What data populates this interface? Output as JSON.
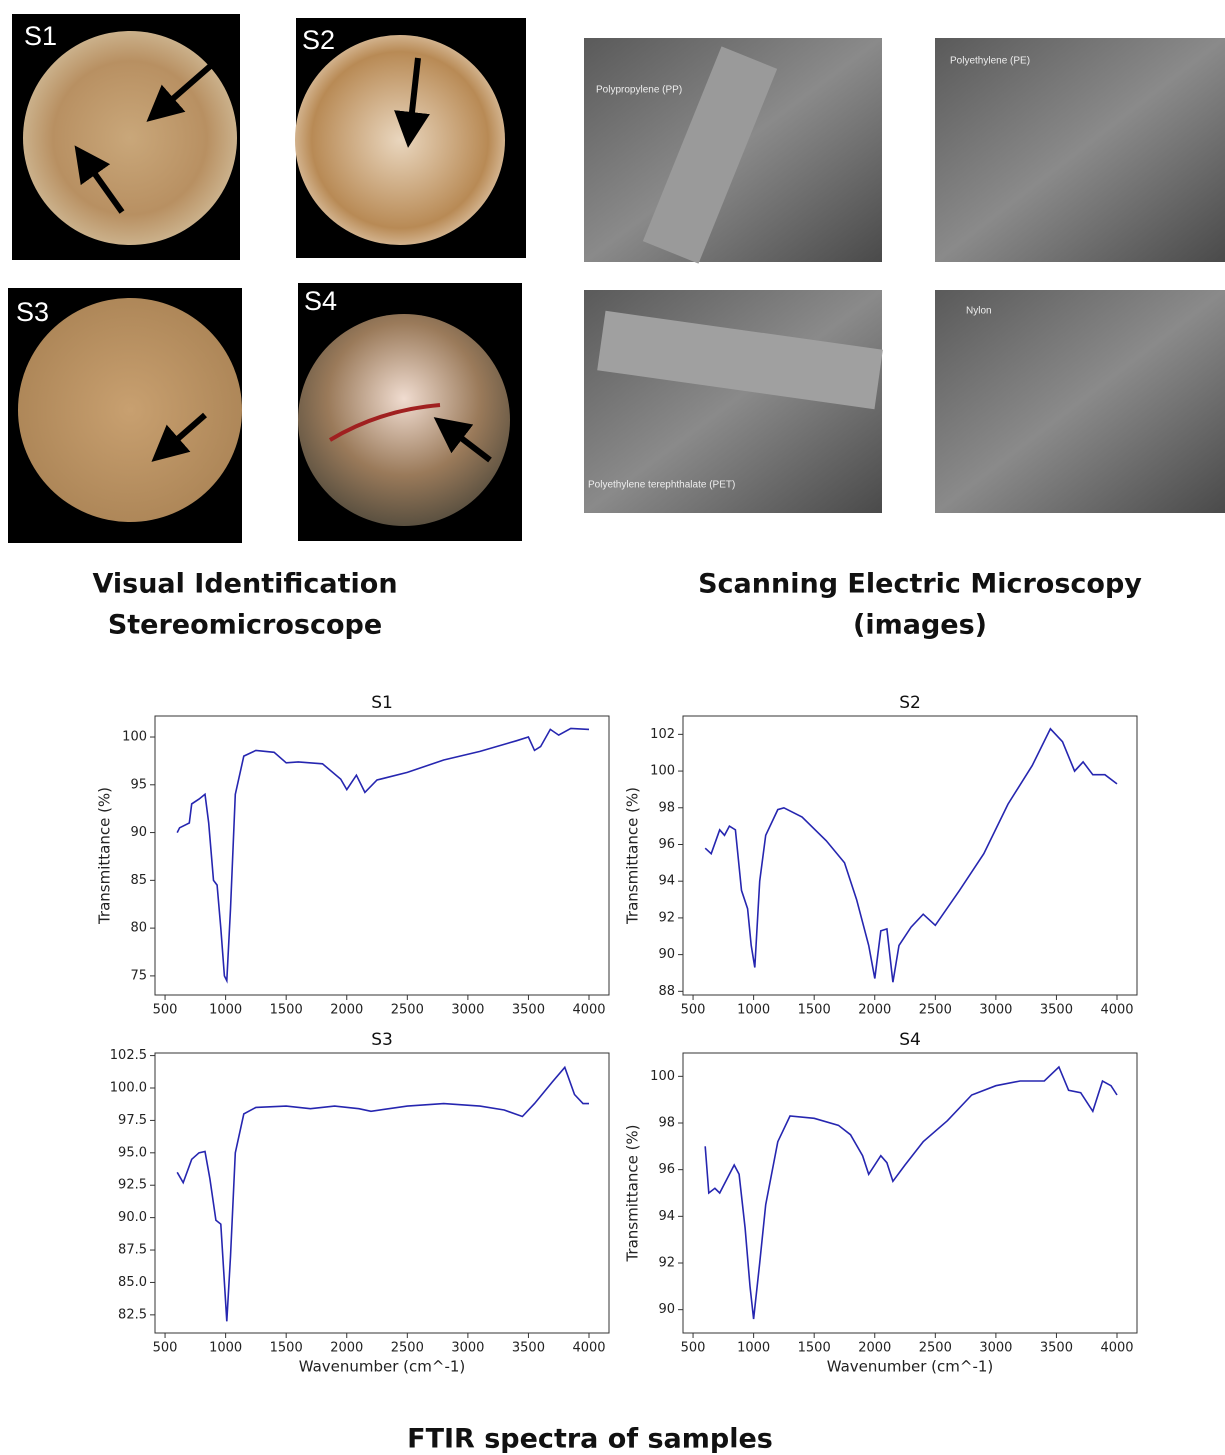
{
  "photos": {
    "labels": [
      "S1",
      "S2",
      "S3",
      "S4"
    ],
    "caption": [
      "Visual Identification",
      "Stereomicroscope"
    ]
  },
  "sem": {
    "labels": [
      "Polypropylene (PP)",
      "Polyethylene (PE)",
      "Polyethylene terephthalate (PET)",
      "Nylon"
    ],
    "caption": [
      "Scanning Electric Microscopy",
      "(images)"
    ]
  },
  "chart_data": [
    {
      "type": "line",
      "title": "S1",
      "ylabel": "Transmittance (%)",
      "color": "#2626b0",
      "x": [
        600,
        620,
        700,
        720,
        780,
        830,
        860,
        900,
        930,
        960,
        990,
        1010,
        1040,
        1080,
        1150,
        1250,
        1400,
        1500,
        1600,
        1800,
        1950,
        2000,
        2080,
        2150,
        2250,
        2500,
        2800,
        3100,
        3400,
        3500,
        3550,
        3600,
        3680,
        3750,
        3850,
        4000
      ],
      "values": [
        90,
        90.5,
        91,
        93,
        93.5,
        94,
        91,
        85,
        84.5,
        80,
        75,
        74.5,
        82,
        94,
        98,
        98.6,
        98.4,
        97.3,
        97.4,
        97.2,
        95.6,
        94.5,
        96,
        94.2,
        95.5,
        96.3,
        97.6,
        98.5,
        99.6,
        100,
        98.6,
        99,
        100.8,
        100.2,
        100.9,
        100.8
      ],
      "xlim": [
        417,
        4165
      ],
      "ylim": [
        73,
        102.2
      ],
      "xticks": [
        500,
        1000,
        1500,
        2000,
        2500,
        3000,
        3500,
        4000
      ],
      "yticks": [
        75,
        80,
        85,
        90,
        95,
        100
      ]
    },
    {
      "type": "line",
      "title": "S2",
      "ylabel": "Transmittance (%)",
      "color": "#2626b0",
      "x": [
        600,
        650,
        720,
        760,
        800,
        850,
        900,
        950,
        980,
        1010,
        1050,
        1100,
        1200,
        1250,
        1400,
        1600,
        1750,
        1850,
        1950,
        2000,
        2050,
        2100,
        2150,
        2200,
        2300,
        2400,
        2500,
        2700,
        2900,
        3100,
        3300,
        3450,
        3550,
        3650,
        3720,
        3800,
        3900,
        4000
      ],
      "values": [
        95.8,
        95.5,
        96.8,
        96.5,
        97,
        96.8,
        93.5,
        92.5,
        90.5,
        89.3,
        94,
        96.5,
        97.9,
        98,
        97.5,
        96.2,
        95,
        93,
        90.5,
        88.7,
        91.3,
        91.4,
        88.5,
        90.5,
        91.5,
        92.2,
        91.6,
        93.5,
        95.5,
        98.2,
        100.3,
        102.3,
        101.6,
        100,
        100.5,
        99.8,
        99.8,
        99.3
      ],
      "xlim": [
        417,
        4165
      ],
      "ylim": [
        87.8,
        103
      ],
      "xticks": [
        500,
        1000,
        1500,
        2000,
        2500,
        3000,
        3500,
        4000
      ],
      "yticks": [
        88,
        90,
        92,
        94,
        96,
        98,
        100,
        102
      ]
    },
    {
      "type": "line",
      "title": "S3",
      "xlabel": "Wavenumber (cm^-1)",
      "color": "#2626b0",
      "x": [
        600,
        650,
        720,
        780,
        830,
        870,
        920,
        960,
        990,
        1010,
        1040,
        1080,
        1150,
        1250,
        1500,
        1700,
        1900,
        2100,
        2200,
        2500,
        2800,
        3100,
        3300,
        3450,
        3550,
        3700,
        3800,
        3880,
        3950,
        4000
      ],
      "values": [
        93.5,
        92.7,
        94.5,
        95,
        95.1,
        93,
        89.8,
        89.5,
        85,
        82,
        87,
        95,
        98,
        98.5,
        98.6,
        98.4,
        98.6,
        98.4,
        98.2,
        98.6,
        98.8,
        98.6,
        98.3,
        97.8,
        98.8,
        100.5,
        101.6,
        99.5,
        98.8,
        98.8
      ],
      "xlim": [
        417,
        4165
      ],
      "ylim": [
        81.1,
        102.7
      ],
      "xticks": [
        500,
        1000,
        1500,
        2000,
        2500,
        3000,
        3500,
        4000
      ],
      "yticks": [
        82.5,
        {
          "value": 85,
          "label": "85.0"
        },
        87.5,
        {
          "value": 90,
          "label": "90.0"
        },
        92.5,
        {
          "value": 95,
          "label": "95.0"
        },
        97.5,
        {
          "value": 100,
          "label": "100.0"
        },
        102.5
      ]
    },
    {
      "type": "line",
      "title": "S4",
      "xlabel": "Wavenumber (cm^-1)",
      "ylabel": "Transmittance (%)",
      "color": "#2626b0",
      "x": [
        600,
        630,
        680,
        720,
        800,
        840,
        880,
        930,
        970,
        1000,
        1050,
        1100,
        1200,
        1300,
        1500,
        1700,
        1800,
        1900,
        1950,
        2050,
        2100,
        2150,
        2250,
        2400,
        2600,
        2800,
        3000,
        3200,
        3400,
        3520,
        3600,
        3700,
        3800,
        3880,
        3950,
        4000
      ],
      "values": [
        97,
        95,
        95.2,
        95,
        95.8,
        96.2,
        95.8,
        93.5,
        91,
        89.6,
        92,
        94.5,
        97.2,
        98.3,
        98.2,
        97.9,
        97.5,
        96.6,
        95.8,
        96.6,
        96.3,
        95.5,
        96.2,
        97.2,
        98.1,
        99.2,
        99.6,
        99.8,
        99.8,
        100.4,
        99.4,
        99.3,
        98.5,
        99.8,
        99.6,
        99.2
      ],
      "xlim": [
        417,
        4165
      ],
      "ylim": [
        89,
        101
      ],
      "xticks": [
        500,
        1000,
        1500,
        2000,
        2500,
        3000,
        3500,
        4000
      ],
      "yticks": [
        90,
        92,
        94,
        96,
        98,
        100
      ]
    }
  ],
  "footer": {
    "title": "FTIR spectra of samples"
  }
}
